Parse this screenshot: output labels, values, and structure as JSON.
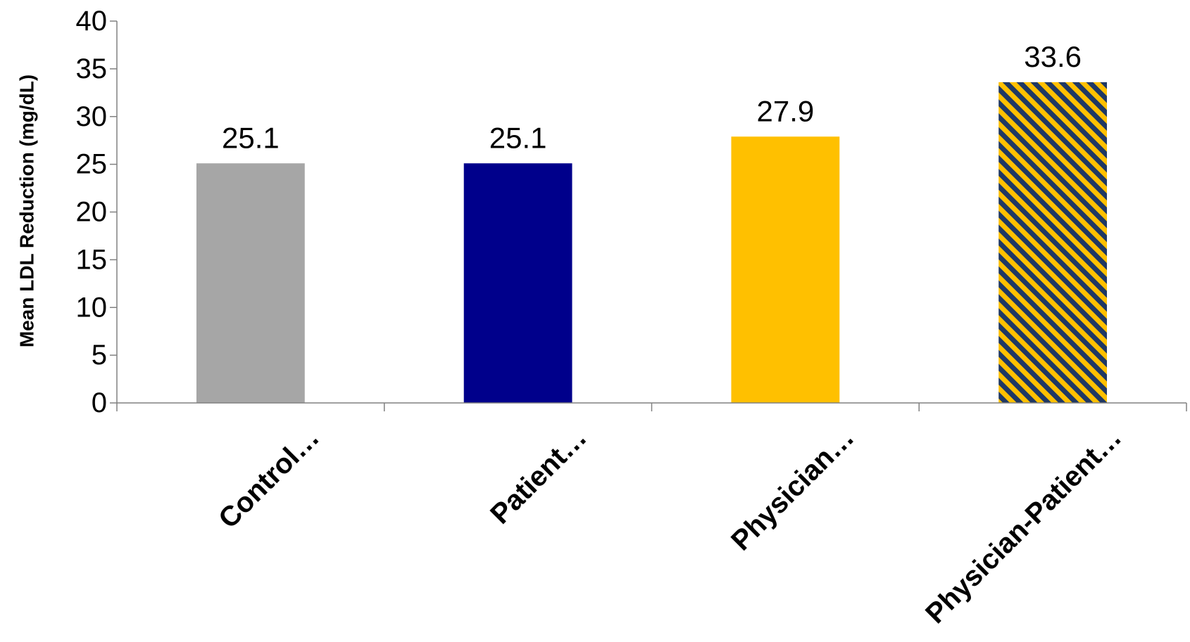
{
  "chart_data": {
    "type": "bar",
    "title": "",
    "xlabel": "",
    "ylabel": "Mean LDL Reduction (mg/dL)",
    "ylim": [
      0,
      40
    ],
    "yticks": [
      0,
      5,
      10,
      15,
      20,
      25,
      30,
      35,
      40
    ],
    "grid": false,
    "legend": "none",
    "categories": [
      "Control…",
      "Patient…",
      "Physician…",
      "Physician-Patient…"
    ],
    "values": [
      25.1,
      25.1,
      27.9,
      33.6
    ],
    "data_labels": [
      "25.1",
      "25.1",
      "27.9",
      "33.6"
    ],
    "bar_colors": [
      "#a6a6a6",
      "#00008b",
      "#ffc000",
      "pattern:stripes(#ffc000,#1f3864)"
    ]
  }
}
